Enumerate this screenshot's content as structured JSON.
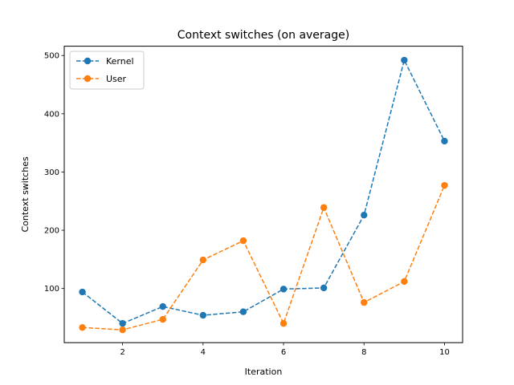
{
  "chart_data": {
    "type": "line",
    "title": "Context switches (on average)",
    "xlabel": "Iteration",
    "ylabel": "Context switches",
    "x": [
      1,
      2,
      3,
      4,
      5,
      6,
      7,
      8,
      9,
      10
    ],
    "xlim": [
      0.55,
      10.45
    ],
    "ylim": [
      7,
      516
    ],
    "xticks": [
      2,
      4,
      6,
      8,
      10
    ],
    "yticks": [
      100,
      200,
      300,
      400,
      500
    ],
    "grid": false,
    "legend_position": "upper-left",
    "series": [
      {
        "name": "Kernel",
        "color": "#1f77b4",
        "linestyle": "dashed",
        "marker": "circle",
        "values": [
          94,
          40,
          69,
          54,
          60,
          99,
          101,
          226,
          492,
          353
        ]
      },
      {
        "name": "User",
        "color": "#ff7f0e",
        "linestyle": "dashed",
        "marker": "circle",
        "values": [
          33,
          29,
          47,
          149,
          182,
          40,
          239,
          76,
          112,
          277
        ]
      }
    ]
  }
}
